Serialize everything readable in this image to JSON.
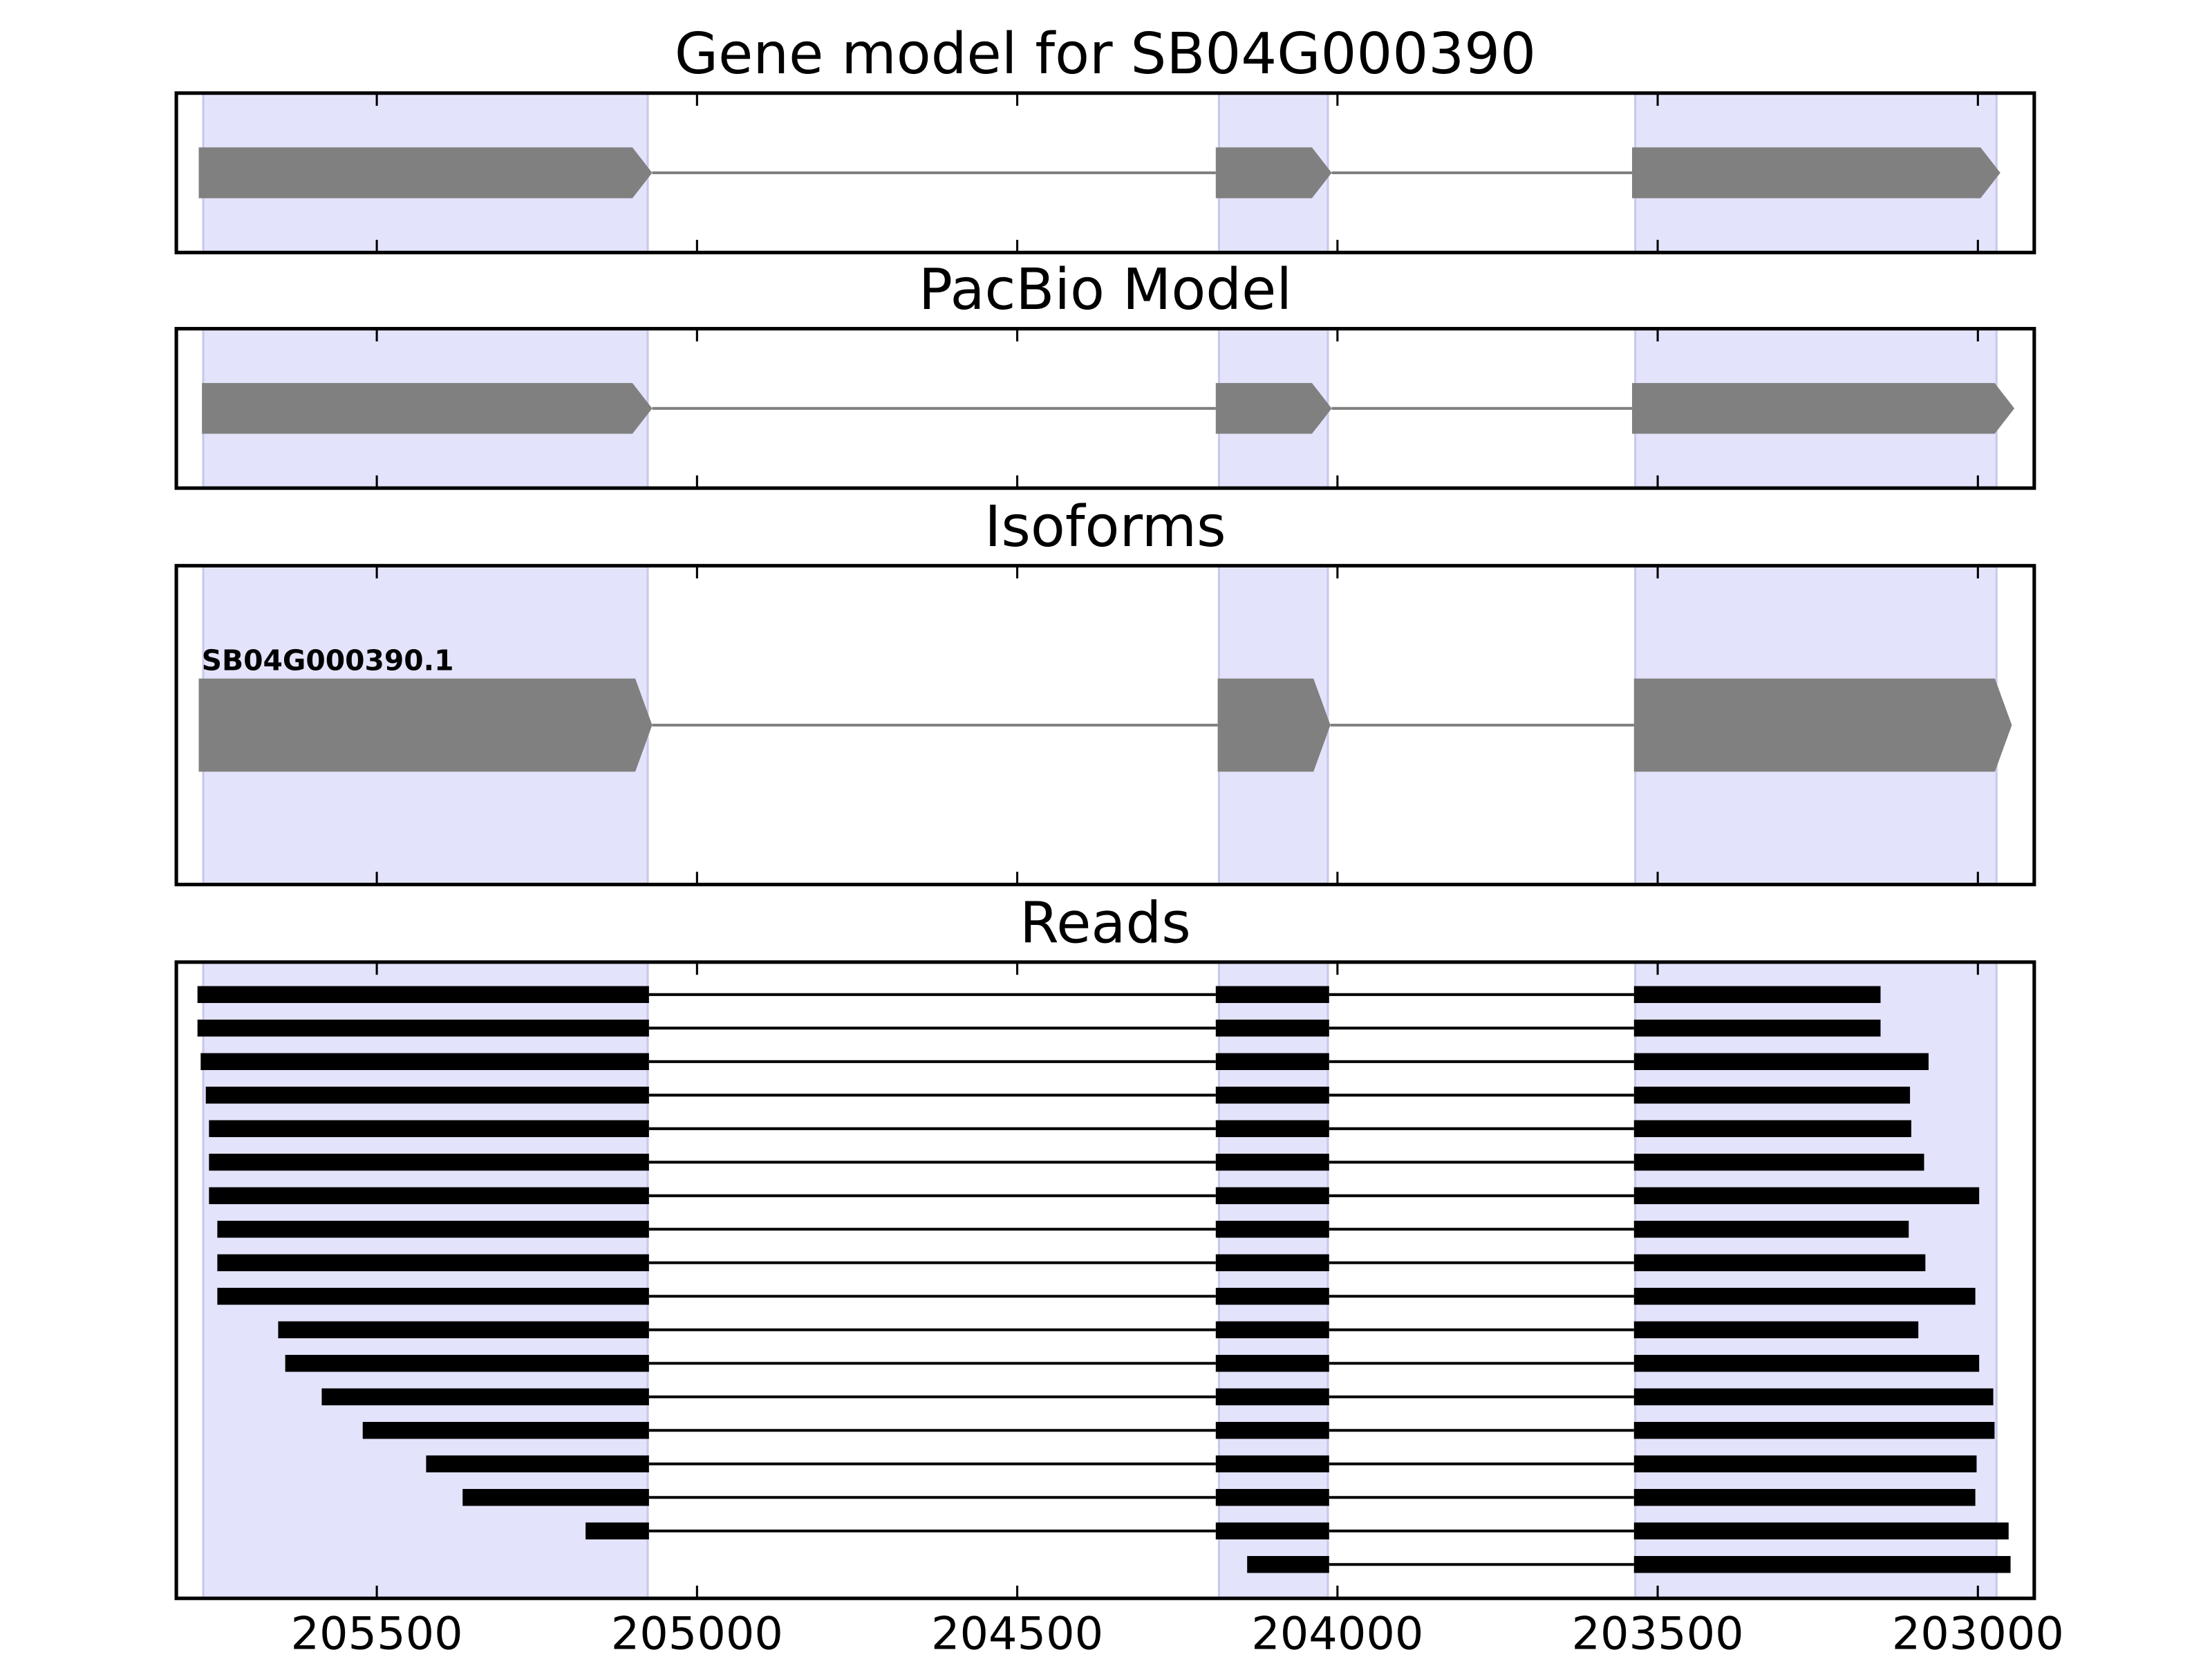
{
  "chart_data": [
    {
      "type": "gene",
      "title": "Gene model for SB04G000390",
      "xlim": [
        205813,
        202912
      ],
      "xticks": [
        205500,
        205000,
        204500,
        204000,
        203500,
        203000
      ],
      "highlights": [
        [
          205771,
          205077
        ],
        [
          204185,
          204015
        ],
        [
          203535,
          202971
        ]
      ],
      "color": "#808080",
      "highlight_color": "#e3e3fb",
      "isoforms": [
        {
          "exons": [
            [
              205778,
              205070
            ],
            [
              204190,
              204009
            ],
            [
              203540,
              202965
            ]
          ]
        }
      ]
    },
    {
      "type": "gene",
      "title": "PacBio Model",
      "xlim": [
        205813,
        202912
      ],
      "xticks": [
        205500,
        205000,
        204500,
        204000,
        203500,
        203000
      ],
      "highlights": [
        [
          205771,
          205077
        ],
        [
          204185,
          204015
        ],
        [
          203535,
          202971
        ]
      ],
      "color": "#808080",
      "highlight_color": "#e3e3fb",
      "isoforms": [
        {
          "exons": [
            [
              205773,
              205070
            ],
            [
              204190,
              204009
            ],
            [
              203540,
              202943
            ]
          ]
        }
      ]
    },
    {
      "type": "gene",
      "title": "Isoforms",
      "xlim": [
        205813,
        202912
      ],
      "xticks": [
        205500,
        205000,
        204500,
        204000,
        203500,
        203000
      ],
      "highlights": [
        [
          205771,
          205077
        ],
        [
          204185,
          204015
        ],
        [
          203535,
          202971
        ]
      ],
      "color": "#808080",
      "highlight_color": "#e3e3fb",
      "isoforms": [
        {
          "name": "SB04G000390.1",
          "exons": [
            [
              205778,
              205070
            ],
            [
              204187,
              204011
            ],
            [
              203537,
              202947
            ]
          ]
        }
      ]
    },
    {
      "type": "reads",
      "title": "Reads",
      "xlim": [
        205813,
        202912
      ],
      "xticks": [
        205500,
        205000,
        204500,
        204000,
        203500,
        203000
      ],
      "highlights": [
        [
          205771,
          205077
        ],
        [
          204185,
          204015
        ],
        [
          203535,
          202971
        ]
      ],
      "color": "#000000",
      "highlight_color": "#e3e3fb",
      "reads": [
        [
          [
            205780,
            205075
          ],
          [
            204190,
            204013
          ],
          [
            203537,
            203152
          ]
        ],
        [
          [
            205780,
            205075
          ],
          [
            204190,
            204013
          ],
          [
            203537,
            203152
          ]
        ],
        [
          [
            205775,
            205075
          ],
          [
            204190,
            204013
          ],
          [
            203537,
            203077
          ]
        ],
        [
          [
            205767,
            205075
          ],
          [
            204190,
            204013
          ],
          [
            203537,
            203106
          ]
        ],
        [
          [
            205762,
            205075
          ],
          [
            204190,
            204013
          ],
          [
            203537,
            203104
          ]
        ],
        [
          [
            205762,
            205075
          ],
          [
            204190,
            204013
          ],
          [
            203537,
            203084
          ]
        ],
        [
          [
            205762,
            205075
          ],
          [
            204190,
            204013
          ],
          [
            203537,
            202998
          ]
        ],
        [
          [
            205749,
            205075
          ],
          [
            204190,
            204013
          ],
          [
            203537,
            203108
          ]
        ],
        [
          [
            205749,
            205075
          ],
          [
            204190,
            204013
          ],
          [
            203537,
            203082
          ]
        ],
        [
          [
            205749,
            205075
          ],
          [
            204190,
            204013
          ],
          [
            203537,
            203004
          ]
        ],
        [
          [
            205654,
            205075
          ],
          [
            204190,
            204013
          ],
          [
            203537,
            203093
          ]
        ],
        [
          [
            205643,
            205075
          ],
          [
            204190,
            204013
          ],
          [
            203537,
            202998
          ]
        ],
        [
          [
            205586,
            205075
          ],
          [
            204190,
            204013
          ],
          [
            203537,
            202976
          ]
        ],
        [
          [
            205522,
            205075
          ],
          [
            204190,
            204013
          ],
          [
            203537,
            202974
          ]
        ],
        [
          [
            205423,
            205075
          ],
          [
            204190,
            204013
          ],
          [
            203537,
            203002
          ]
        ],
        [
          [
            205366,
            205075
          ],
          [
            204190,
            204013
          ],
          [
            203537,
            203004
          ]
        ],
        [
          [
            205174,
            205075
          ],
          [
            204190,
            204013
          ],
          [
            203537,
            202952
          ]
        ],
        [
          [
            204141,
            204013
          ],
          [
            203537,
            202949
          ]
        ]
      ]
    }
  ]
}
